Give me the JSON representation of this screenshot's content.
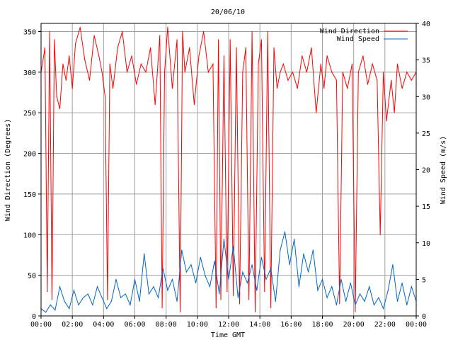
{
  "chart_data": {
    "type": "line",
    "title": "20/06/10",
    "xlabel": "Time GMT",
    "ylabel_left": "Wind Direction (Degrees)",
    "ylabel_right": "Wind Speed (m/s)",
    "x_unit": "hours GMT",
    "xlim": [
      0,
      24
    ],
    "ylim_left": [
      0,
      360
    ],
    "ylim_right": [
      0,
      40
    ],
    "grid": true,
    "legend_position": "top-right",
    "x_ticks": [
      {
        "value": 0,
        "label": "00:00"
      },
      {
        "value": 2,
        "label": "02:00"
      },
      {
        "value": 4,
        "label": "04:00"
      },
      {
        "value": 6,
        "label": "06:00"
      },
      {
        "value": 8,
        "label": "08:00"
      },
      {
        "value": 10,
        "label": "10:00"
      },
      {
        "value": 12,
        "label": "12:00"
      },
      {
        "value": 14,
        "label": "14:00"
      },
      {
        "value": 16,
        "label": "16:00"
      },
      {
        "value": 18,
        "label": "18:00"
      },
      {
        "value": 20,
        "label": "20:00"
      },
      {
        "value": 22,
        "label": "22:00"
      },
      {
        "value": 24,
        "label": "00:00"
      }
    ],
    "y_ticks_left": [
      "0",
      "50",
      "100",
      "150",
      "200",
      "250",
      "300",
      "350"
    ],
    "y_ticks_right": [
      "0",
      "5",
      "10",
      "15",
      "20",
      "25",
      "30",
      "35",
      "40"
    ],
    "series": [
      {
        "name": "Wind Direction",
        "axis": "left",
        "color": "#ff0000",
        "x": [
          0,
          0.25,
          0.4,
          0.55,
          0.7,
          0.85,
          1.0,
          1.2,
          1.4,
          1.6,
          1.8,
          2.0,
          2.2,
          2.5,
          2.8,
          3.1,
          3.4,
          3.7,
          3.9,
          4.1,
          4.25,
          4.4,
          4.6,
          4.9,
          5.2,
          5.5,
          5.8,
          6.1,
          6.4,
          6.7,
          7.0,
          7.3,
          7.6,
          7.75,
          7.9,
          8.1,
          8.4,
          8.7,
          8.9,
          9.05,
          9.2,
          9.5,
          9.8,
          10.1,
          10.4,
          10.7,
          11.0,
          11.2,
          11.35,
          11.5,
          11.7,
          11.9,
          12.1,
          12.3,
          12.5,
          12.7,
          12.9,
          13.1,
          13.3,
          13.5,
          13.7,
          13.9,
          14.1,
          14.3,
          14.5,
          14.7,
          14.9,
          15.1,
          15.3,
          15.5,
          15.8,
          16.1,
          16.4,
          16.7,
          17.0,
          17.3,
          17.6,
          17.9,
          18.1,
          18.3,
          18.6,
          18.9,
          19.1,
          19.3,
          19.6,
          19.9,
          20.1,
          20.3,
          20.6,
          20.9,
          21.2,
          21.5,
          21.7,
          21.9,
          22.1,
          22.4,
          22.6,
          22.8,
          23.1,
          23.4,
          23.7,
          24.0
        ],
        "values": [
          300,
          330,
          30,
          350,
          20,
          340,
          270,
          255,
          310,
          290,
          320,
          280,
          335,
          355,
          315,
          290,
          345,
          320,
          300,
          270,
          20,
          310,
          280,
          330,
          350,
          300,
          320,
          285,
          310,
          300,
          330,
          260,
          345,
          10,
          300,
          355,
          280,
          340,
          5,
          350,
          300,
          330,
          260,
          320,
          350,
          300,
          310,
          10,
          340,
          20,
          320,
          30,
          340,
          25,
          330,
          15,
          300,
          330,
          20,
          350,
          5,
          310,
          340,
          30,
          350,
          10,
          330,
          280,
          300,
          310,
          290,
          300,
          280,
          320,
          300,
          330,
          250,
          310,
          280,
          320,
          300,
          290,
          15,
          300,
          280,
          310,
          5,
          300,
          320,
          285,
          310,
          290,
          100,
          300,
          240,
          290,
          250,
          310,
          280,
          300,
          290,
          300
        ]
      },
      {
        "name": "Wind Speed",
        "axis": "right",
        "color": "#0066cc",
        "x": [
          0,
          0.3,
          0.6,
          0.9,
          1.2,
          1.5,
          1.8,
          2.1,
          2.4,
          2.7,
          3.0,
          3.3,
          3.6,
          3.9,
          4.2,
          4.5,
          4.8,
          5.1,
          5.4,
          5.7,
          6.0,
          6.3,
          6.6,
          6.9,
          7.2,
          7.5,
          7.8,
          8.1,
          8.4,
          8.7,
          9.0,
          9.3,
          9.6,
          9.9,
          10.2,
          10.5,
          10.8,
          11.1,
          11.4,
          11.7,
          12.0,
          12.3,
          12.6,
          12.9,
          13.2,
          13.5,
          13.8,
          14.1,
          14.4,
          14.7,
          15.0,
          15.3,
          15.6,
          15.9,
          16.2,
          16.5,
          16.8,
          17.1,
          17.4,
          17.7,
          18.0,
          18.3,
          18.6,
          18.9,
          19.2,
          19.5,
          19.8,
          20.1,
          20.4,
          20.7,
          21.0,
          21.3,
          21.6,
          21.9,
          22.2,
          22.5,
          22.8,
          23.1,
          23.4,
          23.7,
          24.0
        ],
        "values": [
          1.0,
          0.5,
          1.5,
          0.8,
          4.0,
          2.0,
          1.0,
          3.5,
          1.5,
          2.5,
          3.0,
          1.5,
          4.0,
          2.5,
          1.0,
          2.0,
          5.0,
          2.5,
          3.0,
          1.5,
          5.0,
          2.0,
          8.5,
          3.0,
          4.0,
          2.5,
          6.5,
          3.5,
          5.0,
          2.0,
          9.0,
          6.0,
          7.0,
          4.5,
          8.0,
          5.5,
          4.0,
          7.5,
          3.0,
          10.5,
          5.0,
          9.5,
          2.5,
          6.0,
          4.5,
          7.0,
          3.5,
          8.0,
          5.0,
          6.5,
          2.0,
          9.0,
          11.5,
          7.0,
          10.5,
          4.0,
          8.5,
          6.0,
          9.0,
          3.5,
          5.0,
          2.5,
          4.0,
          1.5,
          5.0,
          2.0,
          4.5,
          1.5,
          3.0,
          2.0,
          4.0,
          1.5,
          2.5,
          1.0,
          3.5,
          7.0,
          2.0,
          4.5,
          1.5,
          4.0,
          2.0
        ]
      }
    ]
  }
}
